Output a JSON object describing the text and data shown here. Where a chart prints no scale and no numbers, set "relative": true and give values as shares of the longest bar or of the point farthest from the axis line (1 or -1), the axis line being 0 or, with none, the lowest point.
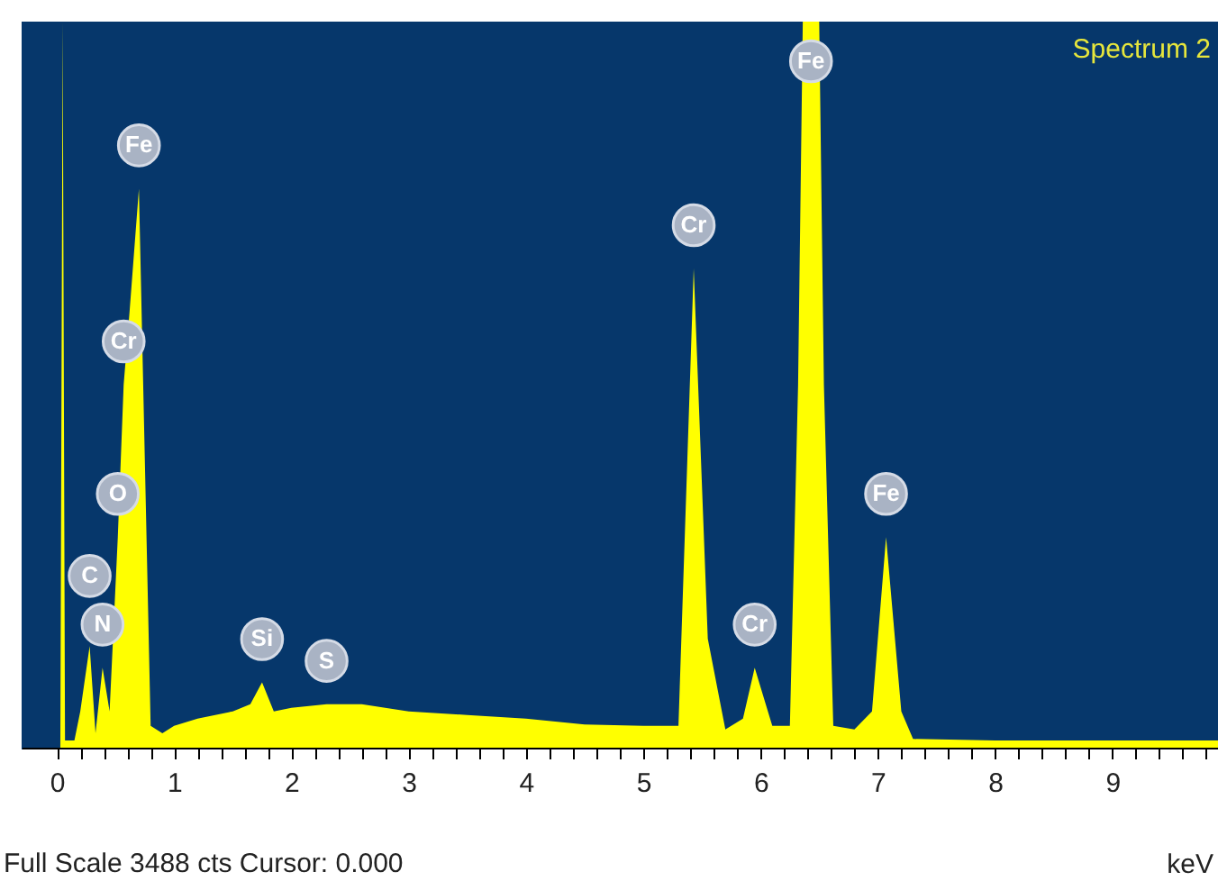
{
  "chart_data": {
    "type": "area",
    "title": "Spectrum 2",
    "xlabel": "keV",
    "relative": true,
    "grid": false,
    "tick_labels": "x",
    "xlim": [
      -0.3,
      9.9
    ],
    "xticks": [
      0,
      {
        "value": 0.2,
        "label": null
      },
      {
        "value": 0.4,
        "label": null
      },
      {
        "value": 0.6,
        "label": null
      },
      {
        "value": 0.8,
        "label": null
      },
      1,
      {
        "value": 1.2,
        "label": null
      },
      {
        "value": 1.4,
        "label": null
      },
      {
        "value": 1.6,
        "label": null
      },
      {
        "value": 1.8,
        "label": null
      },
      2,
      {
        "value": 2.2,
        "label": null
      },
      {
        "value": 2.4,
        "label": null
      },
      {
        "value": 2.6,
        "label": null
      },
      {
        "value": 2.8,
        "label": null
      },
      3,
      {
        "value": 3.2,
        "label": null
      },
      {
        "value": 3.4,
        "label": null
      },
      {
        "value": 3.6,
        "label": null
      },
      {
        "value": 3.8,
        "label": null
      },
      4,
      {
        "value": 4.2,
        "label": null
      },
      {
        "value": 4.4,
        "label": null
      },
      {
        "value": 4.6,
        "label": null
      },
      {
        "value": 4.8,
        "label": null
      },
      5,
      {
        "value": 5.2,
        "label": null
      },
      {
        "value": 5.4,
        "label": null
      },
      {
        "value": 5.6,
        "label": null
      },
      {
        "value": 5.8,
        "label": null
      },
      6,
      {
        "value": 6.2,
        "label": null
      },
      {
        "value": 6.4,
        "label": null
      },
      {
        "value": 6.6,
        "label": null
      },
      {
        "value": 6.8,
        "label": null
      },
      7,
      {
        "value": 7.2,
        "label": null
      },
      {
        "value": 7.4,
        "label": null
      },
      {
        "value": 7.6,
        "label": null
      },
      {
        "value": 7.8,
        "label": null
      },
      8,
      {
        "value": 8.2,
        "label": null
      },
      {
        "value": 8.4,
        "label": null
      },
      {
        "value": 8.6,
        "label": null
      },
      {
        "value": 8.8,
        "label": null
      },
      9,
      {
        "value": 9.2,
        "label": null
      },
      {
        "value": 9.4,
        "label": null
      },
      {
        "value": 9.6,
        "label": null
      },
      {
        "value": 9.8,
        "label": null
      }
    ],
    "x": [
      0.0,
      0.03,
      0.05,
      0.07,
      0.15,
      0.2,
      0.28,
      0.33,
      0.39,
      0.45,
      0.52,
      0.57,
      0.62,
      0.7,
      0.75,
      0.8,
      0.9,
      1.0,
      1.2,
      1.5,
      1.65,
      1.75,
      1.85,
      2.0,
      2.3,
      2.6,
      3.0,
      3.5,
      4.0,
      4.5,
      5.0,
      5.3,
      5.43,
      5.55,
      5.7,
      5.85,
      5.95,
      6.1,
      6.25,
      6.32,
      6.36,
      6.5,
      6.54,
      6.62,
      6.8,
      6.95,
      7.07,
      7.2,
      7.3,
      8.0,
      9.0,
      9.9
    ],
    "series": [
      {
        "color": "#ffff00",
        "values": [
          0.0,
          0.0,
          1.0,
          0.01,
          0.01,
          0.05,
          0.14,
          0.02,
          0.11,
          0.05,
          0.29,
          0.5,
          0.6,
          0.77,
          0.4,
          0.03,
          0.02,
          0.03,
          0.04,
          0.05,
          0.06,
          0.09,
          0.05,
          0.055,
          0.06,
          0.06,
          0.05,
          0.045,
          0.04,
          0.032,
          0.03,
          0.03,
          0.66,
          0.15,
          0.025,
          0.04,
          0.11,
          0.03,
          0.03,
          0.5,
          1.0,
          1.0,
          0.5,
          0.03,
          0.025,
          0.05,
          0.29,
          0.05,
          0.012,
          0.01,
          0.01,
          0.01
        ]
      }
    ],
    "annotations": [
      {
        "text": "Fe",
        "x": 0.7,
        "y": 0.77
      },
      {
        "text": "Cr",
        "x": 0.57,
        "y": 0.5
      },
      {
        "text": "O",
        "x": 0.52,
        "y": 0.29
      },
      {
        "text": "C",
        "x": 0.28,
        "y": 0.14
      },
      {
        "text": "N",
        "x": 0.39,
        "y": 0.11
      },
      {
        "text": "Si",
        "x": 1.75,
        "y": 0.09
      },
      {
        "text": "S",
        "x": 2.3,
        "y": 0.06
      },
      {
        "text": "Cr",
        "x": 5.43,
        "y": 0.66
      },
      {
        "text": "Cr",
        "x": 5.95,
        "y": 0.11
      },
      {
        "text": "Fe",
        "x": 6.43,
        "y": 1.0
      },
      {
        "text": "Fe",
        "x": 7.07,
        "y": 0.29
      },
      "Full Scale 3488 cts Cursor: 0.000"
    ]
  }
}
